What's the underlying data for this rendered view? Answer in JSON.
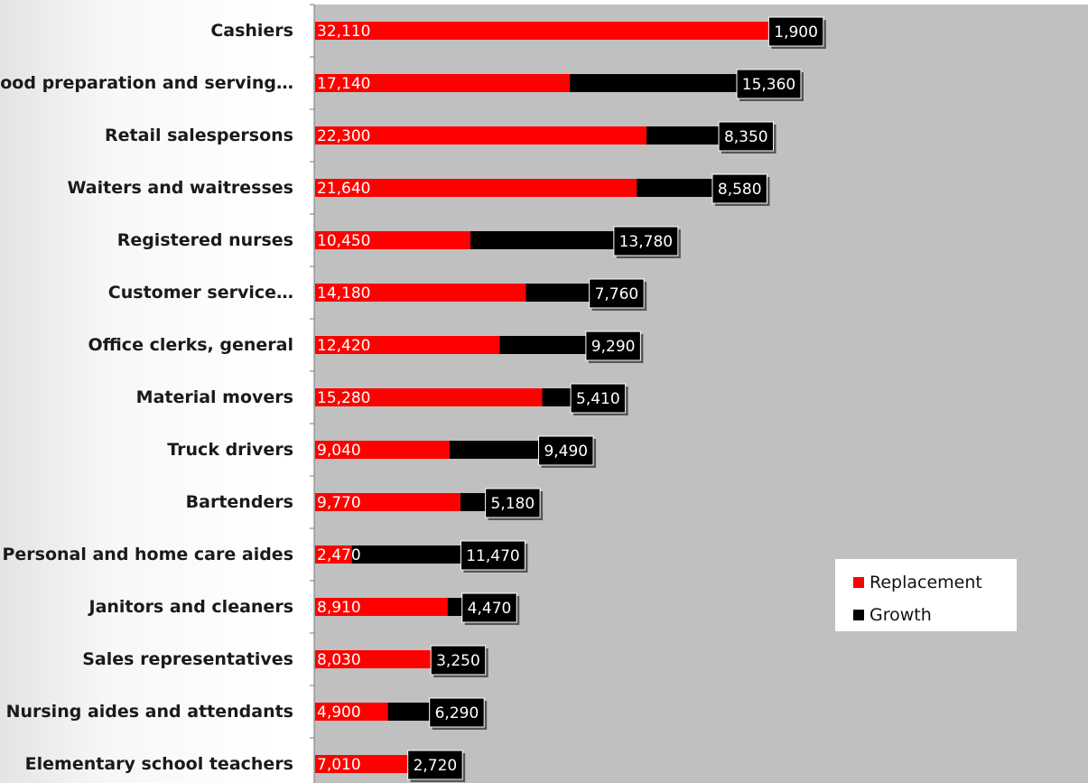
{
  "chart_data": {
    "type": "bar",
    "orientation": "horizontal",
    "stacked": true,
    "categories": [
      "Cashiers",
      "Food preparation and serving…",
      "Retail salespersons",
      "Waiters and waitresses",
      "Registered nurses",
      "Customer service…",
      "Office clerks, general",
      "Material movers",
      "Truck drivers",
      "Bartenders",
      "Personal and home care aides",
      "Janitors and cleaners",
      "Sales representatives",
      "Nursing aides and attendants",
      "Elementary school teachers"
    ],
    "series": [
      {
        "name": "Replacement",
        "color": "#ff0000",
        "values": [
          32110,
          17140,
          22300,
          21640,
          10450,
          14180,
          12420,
          15280,
          9040,
          9770,
          2470,
          8910,
          8030,
          4900,
          7010
        ],
        "labels": [
          "32,110",
          "17,140",
          "22,300",
          "21,640",
          "10,450",
          "14,180",
          "12,420",
          "15,280",
          "9,040",
          "9,770",
          "2,470",
          "8,910",
          "8,030",
          "4,900",
          "7,010"
        ]
      },
      {
        "name": "Growth",
        "color": "#000000",
        "values": [
          1900,
          15360,
          8350,
          8580,
          13780,
          7760,
          9290,
          5410,
          9490,
          5180,
          11470,
          4470,
          3250,
          6290,
          2720
        ],
        "labels": [
          "1,900",
          "15,360",
          "8,350",
          "8,580",
          "13,780",
          "7,760",
          "9,290",
          "5,410",
          "9,490",
          "5,180",
          "11,470",
          "4,470",
          "3,250",
          "6,290",
          "2,720"
        ]
      }
    ],
    "xlim": [
      0,
      52000
    ],
    "legend_position": "bottom-right",
    "plot_background": "#c0c0c0",
    "title": "",
    "xlabel": "",
    "ylabel": ""
  },
  "legend": {
    "replacement_label": "Replacement",
    "growth_label": "Growth"
  }
}
